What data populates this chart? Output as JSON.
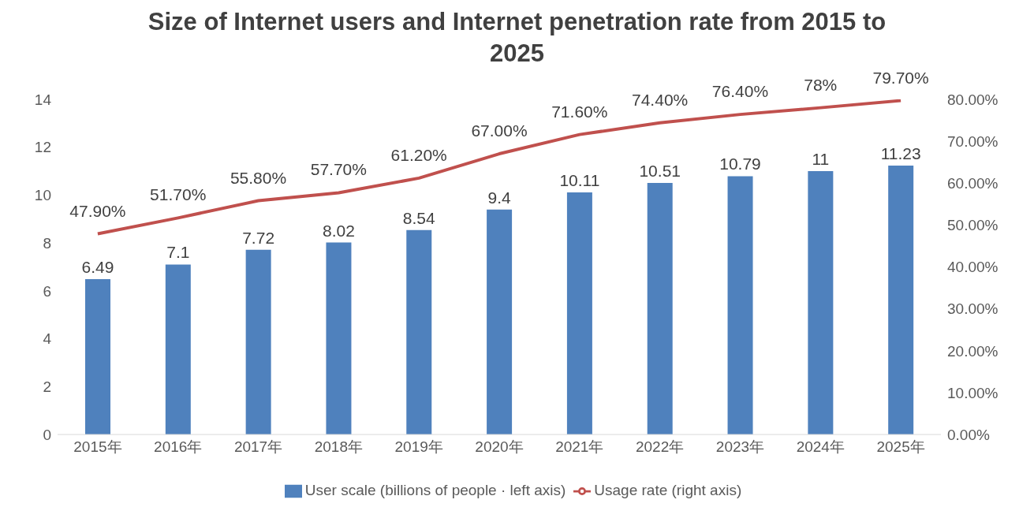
{
  "chart_data": {
    "type": "bar",
    "title": "Size of Internet users and Internet penetration rate from 2015 to 2025",
    "categories": [
      "2015年",
      "2016年",
      "2017年",
      "2018年",
      "2019年",
      "2020年",
      "2021年",
      "2022年",
      "2023年",
      "2024年",
      "2025年"
    ],
    "series": [
      {
        "name": "User scale (billions of people · left axis)",
        "color": "#4f81bd",
        "values": [
          6.49,
          7.1,
          7.72,
          8.02,
          8.54,
          9.4,
          10.11,
          10.51,
          10.79,
          11,
          11.23
        ]
      },
      {
        "name": "Usage rate (right axis)",
        "type": "line",
        "axis": "y2",
        "color": "#c0504d",
        "marker": "none",
        "values": [
          47.9,
          51.7,
          55.8,
          57.7,
          61.2,
          67.0,
          71.6,
          74.4,
          76.4,
          78,
          79.7
        ],
        "value_labels": [
          "47.90%",
          "51.70%",
          "55.80%",
          "57.70%",
          "61.20%",
          "67.00%",
          "71.60%",
          "74.40%",
          "76.40%",
          "78%",
          "79.70%"
        ]
      }
    ],
    "ylim": [
      0,
      14
    ],
    "yticks": [
      0,
      2,
      4,
      6,
      8,
      10,
      12,
      14
    ],
    "y2lim": [
      0,
      80
    ],
    "y2ticks": [
      {
        "value": 0,
        "label": "0.00%"
      },
      {
        "value": 10,
        "label": "10.00%"
      },
      {
        "value": 20,
        "label": "20.00%"
      },
      {
        "value": 30,
        "label": "30.00%"
      },
      {
        "value": 40,
        "label": "40.00%"
      },
      {
        "value": 50,
        "label": "50.00%"
      },
      {
        "value": 60,
        "label": "60.00%"
      },
      {
        "value": 70,
        "label": "70.00%"
      },
      {
        "value": 80,
        "label": "80.00%"
      }
    ],
    "data_labels": true,
    "grid": false,
    "legend": "bottom"
  }
}
